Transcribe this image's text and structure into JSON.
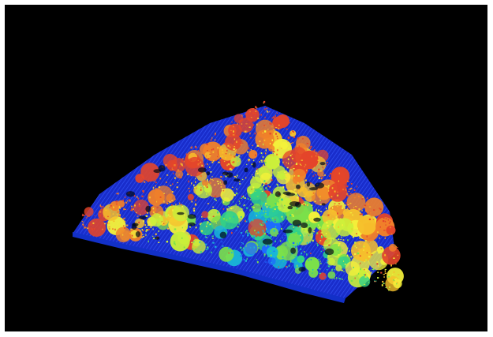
{
  "scene": {
    "description_role": "lidar-point-cloud-render",
    "background_color": "#000000",
    "frame_color": "#ffffff",
    "colormap": [
      "#1b3cff",
      "#1e6bff",
      "#19b8d6",
      "#2fd28a",
      "#7be04a",
      "#c8ef3a",
      "#f3f03a",
      "#f6c02c",
      "#f0802a",
      "#e4452a"
    ]
  }
}
